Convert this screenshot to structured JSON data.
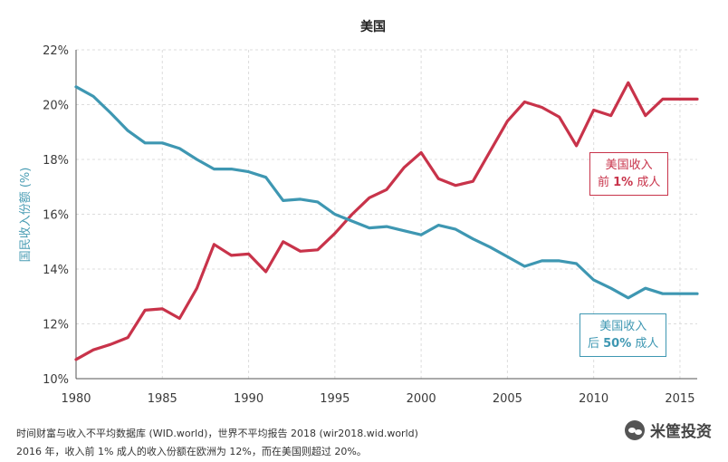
{
  "chart_data": {
    "type": "line",
    "title": "美国",
    "ylabel": "国民收入份额 (%)",
    "xlim": [
      1980,
      2016
    ],
    "ylim": [
      10,
      22
    ],
    "yticks": [
      10,
      12,
      14,
      16,
      18,
      20,
      22
    ],
    "ytick_labels": [
      "10%",
      "12%",
      "14%",
      "16%",
      "18%",
      "20%",
      "22%"
    ],
    "xticks": [
      1980,
      1985,
      1990,
      1995,
      2000,
      2005,
      2010,
      2015
    ],
    "xtick_labels": [
      "1980",
      "1985",
      "1990",
      "1995",
      "2000",
      "2005",
      "2010",
      "2015"
    ],
    "grid": true,
    "x": [
      1980,
      1981,
      1982,
      1983,
      1984,
      1985,
      1986,
      1987,
      1988,
      1989,
      1990,
      1991,
      1992,
      1993,
      1994,
      1995,
      1996,
      1997,
      1998,
      1999,
      2000,
      2001,
      2002,
      2003,
      2004,
      2005,
      2006,
      2007,
      2008,
      2009,
      2010,
      2011,
      2012,
      2013,
      2014,
      2015,
      2016
    ],
    "series": [
      {
        "name_line1": "美国收入",
        "name_prefix": "前 ",
        "name_bold": "1%",
        "name_suffix": " 成人",
        "color": "#c8334a",
        "values": [
          10.7,
          11.05,
          11.25,
          11.5,
          12.5,
          12.55,
          12.2,
          13.3,
          14.9,
          14.5,
          14.55,
          13.9,
          15.0,
          14.65,
          14.7,
          15.3,
          16.0,
          16.6,
          16.9,
          17.7,
          18.25,
          17.3,
          17.05,
          17.2,
          18.3,
          19.4,
          20.1,
          19.9,
          19.55,
          18.5,
          19.8,
          19.6,
          20.8,
          19.6,
          20.2,
          20.2,
          20.2
        ]
      },
      {
        "name_line1": "美国收入",
        "name_prefix": "后 ",
        "name_bold": "50%",
        "name_suffix": " 成人",
        "color": "#3e97b2",
        "values": [
          20.65,
          20.3,
          19.7,
          19.05,
          18.6,
          18.6,
          18.4,
          18.0,
          17.65,
          17.65,
          17.55,
          17.35,
          16.5,
          16.55,
          16.45,
          16.0,
          15.75,
          15.5,
          15.55,
          15.4,
          15.25,
          15.6,
          15.45,
          15.1,
          14.8,
          14.45,
          14.1,
          14.3,
          14.3,
          14.2,
          13.6,
          13.3,
          12.95,
          13.3,
          13.1,
          13.1,
          13.1
        ]
      }
    ]
  },
  "notes": {
    "line1": "时间财富与收入不平均数据库 (WID.world)，世界不平均报告 2018 (wir2018.wid.world)",
    "line2": "2016 年，收入前 1% 成人的收入份额在欧洲为 12%，而在美国则超过 20%。"
  },
  "watermark": {
    "text": "米筐投资"
  }
}
